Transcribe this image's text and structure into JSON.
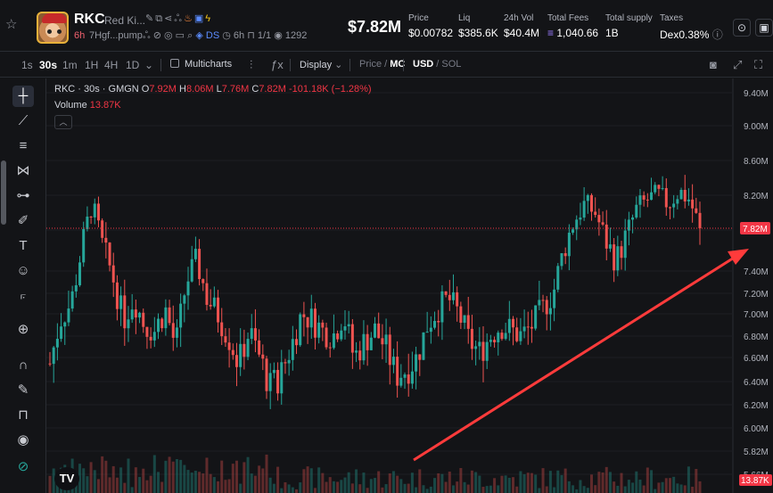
{
  "header": {
    "ticker": "RKC",
    "name": "Red Ki...",
    "age": "6h",
    "address": "7Hgf...pump",
    "dex_tag": "DS",
    "age2": "6h",
    "ratio": "1/1",
    "views": "1292",
    "market_cap": "$7.82M",
    "stats": [
      {
        "label": "Price",
        "value": "$0.00782"
      },
      {
        "label": "Liq",
        "value": "$385.6K"
      },
      {
        "label": "24h Vol",
        "value": "$40.4M"
      },
      {
        "label": "Total Fees",
        "value": "1,040.66"
      },
      {
        "label": "Total supply",
        "value": "1B"
      },
      {
        "label": "Taxes",
        "value": "Dex0.38%"
      }
    ]
  },
  "toolbar": {
    "timeframes": [
      "1s",
      "30s",
      "1m",
      "1H",
      "4H",
      "1D"
    ],
    "active_timeframe": "30s",
    "multicharts": "Multicharts",
    "display": "Display",
    "price_label": "Price",
    "mc_label": "MC",
    "usd_label": "USD",
    "sol_label": "SOL"
  },
  "legend": {
    "title": "RKC · 30s · GMGN",
    "o_label": "O",
    "o": "7.92M",
    "h_label": "H",
    "h": "8.06M",
    "l_label": "L",
    "l": "7.76M",
    "c_label": "C",
    "c": "7.82M",
    "change": "-101.18K (−1.28%)",
    "volume_label": "Volume",
    "volume": "13.87K"
  },
  "axis": {
    "price_labels": [
      "9.40M",
      "9.00M",
      "8.60M",
      "8.20M",
      "7.80M",
      "7.40M",
      "7.20M",
      "7.00M",
      "6.80M",
      "6.60M",
      "6.40M",
      "6.20M",
      "6.00M",
      "5.82M",
      "5.66M"
    ],
    "current_price_tag": "7.82M",
    "volume_tag": "13.87K"
  },
  "colors": {
    "up": "#26a69a",
    "down": "#ef5350",
    "arrow": "#ff3b3b",
    "price_tag": "#f23645"
  },
  "chart_data": {
    "type": "candlestick",
    "y_unit": "market cap (M)",
    "current_close": 7.82,
    "note_arrow": "red arrow pointing to current price tag",
    "price_shape": [
      6.55,
      6.95,
      7.1,
      7.6,
      8.1,
      7.65,
      7.35,
      6.95,
      7.15,
      6.9,
      6.85,
      7.05,
      6.7,
      7.3,
      7.5,
      7.15,
      7.0,
      6.8,
      6.55,
      6.85,
      6.6,
      6.35,
      6.45,
      6.7,
      7.0,
      6.95,
      6.85,
      6.8,
      7.0,
      6.6,
      6.75,
      6.85,
      6.7,
      6.45,
      6.5,
      6.6,
      6.9,
      7.05,
      7.15,
      7.0,
      6.75,
      6.65,
      6.8,
      6.9,
      6.85,
      6.8,
      6.9,
      7.05,
      7.2,
      7.6,
      7.9,
      8.1,
      8.0,
      7.7,
      7.5,
      7.75,
      8.05,
      8.15,
      8.2,
      8.1,
      8.25,
      8.15,
      7.82
    ]
  }
}
